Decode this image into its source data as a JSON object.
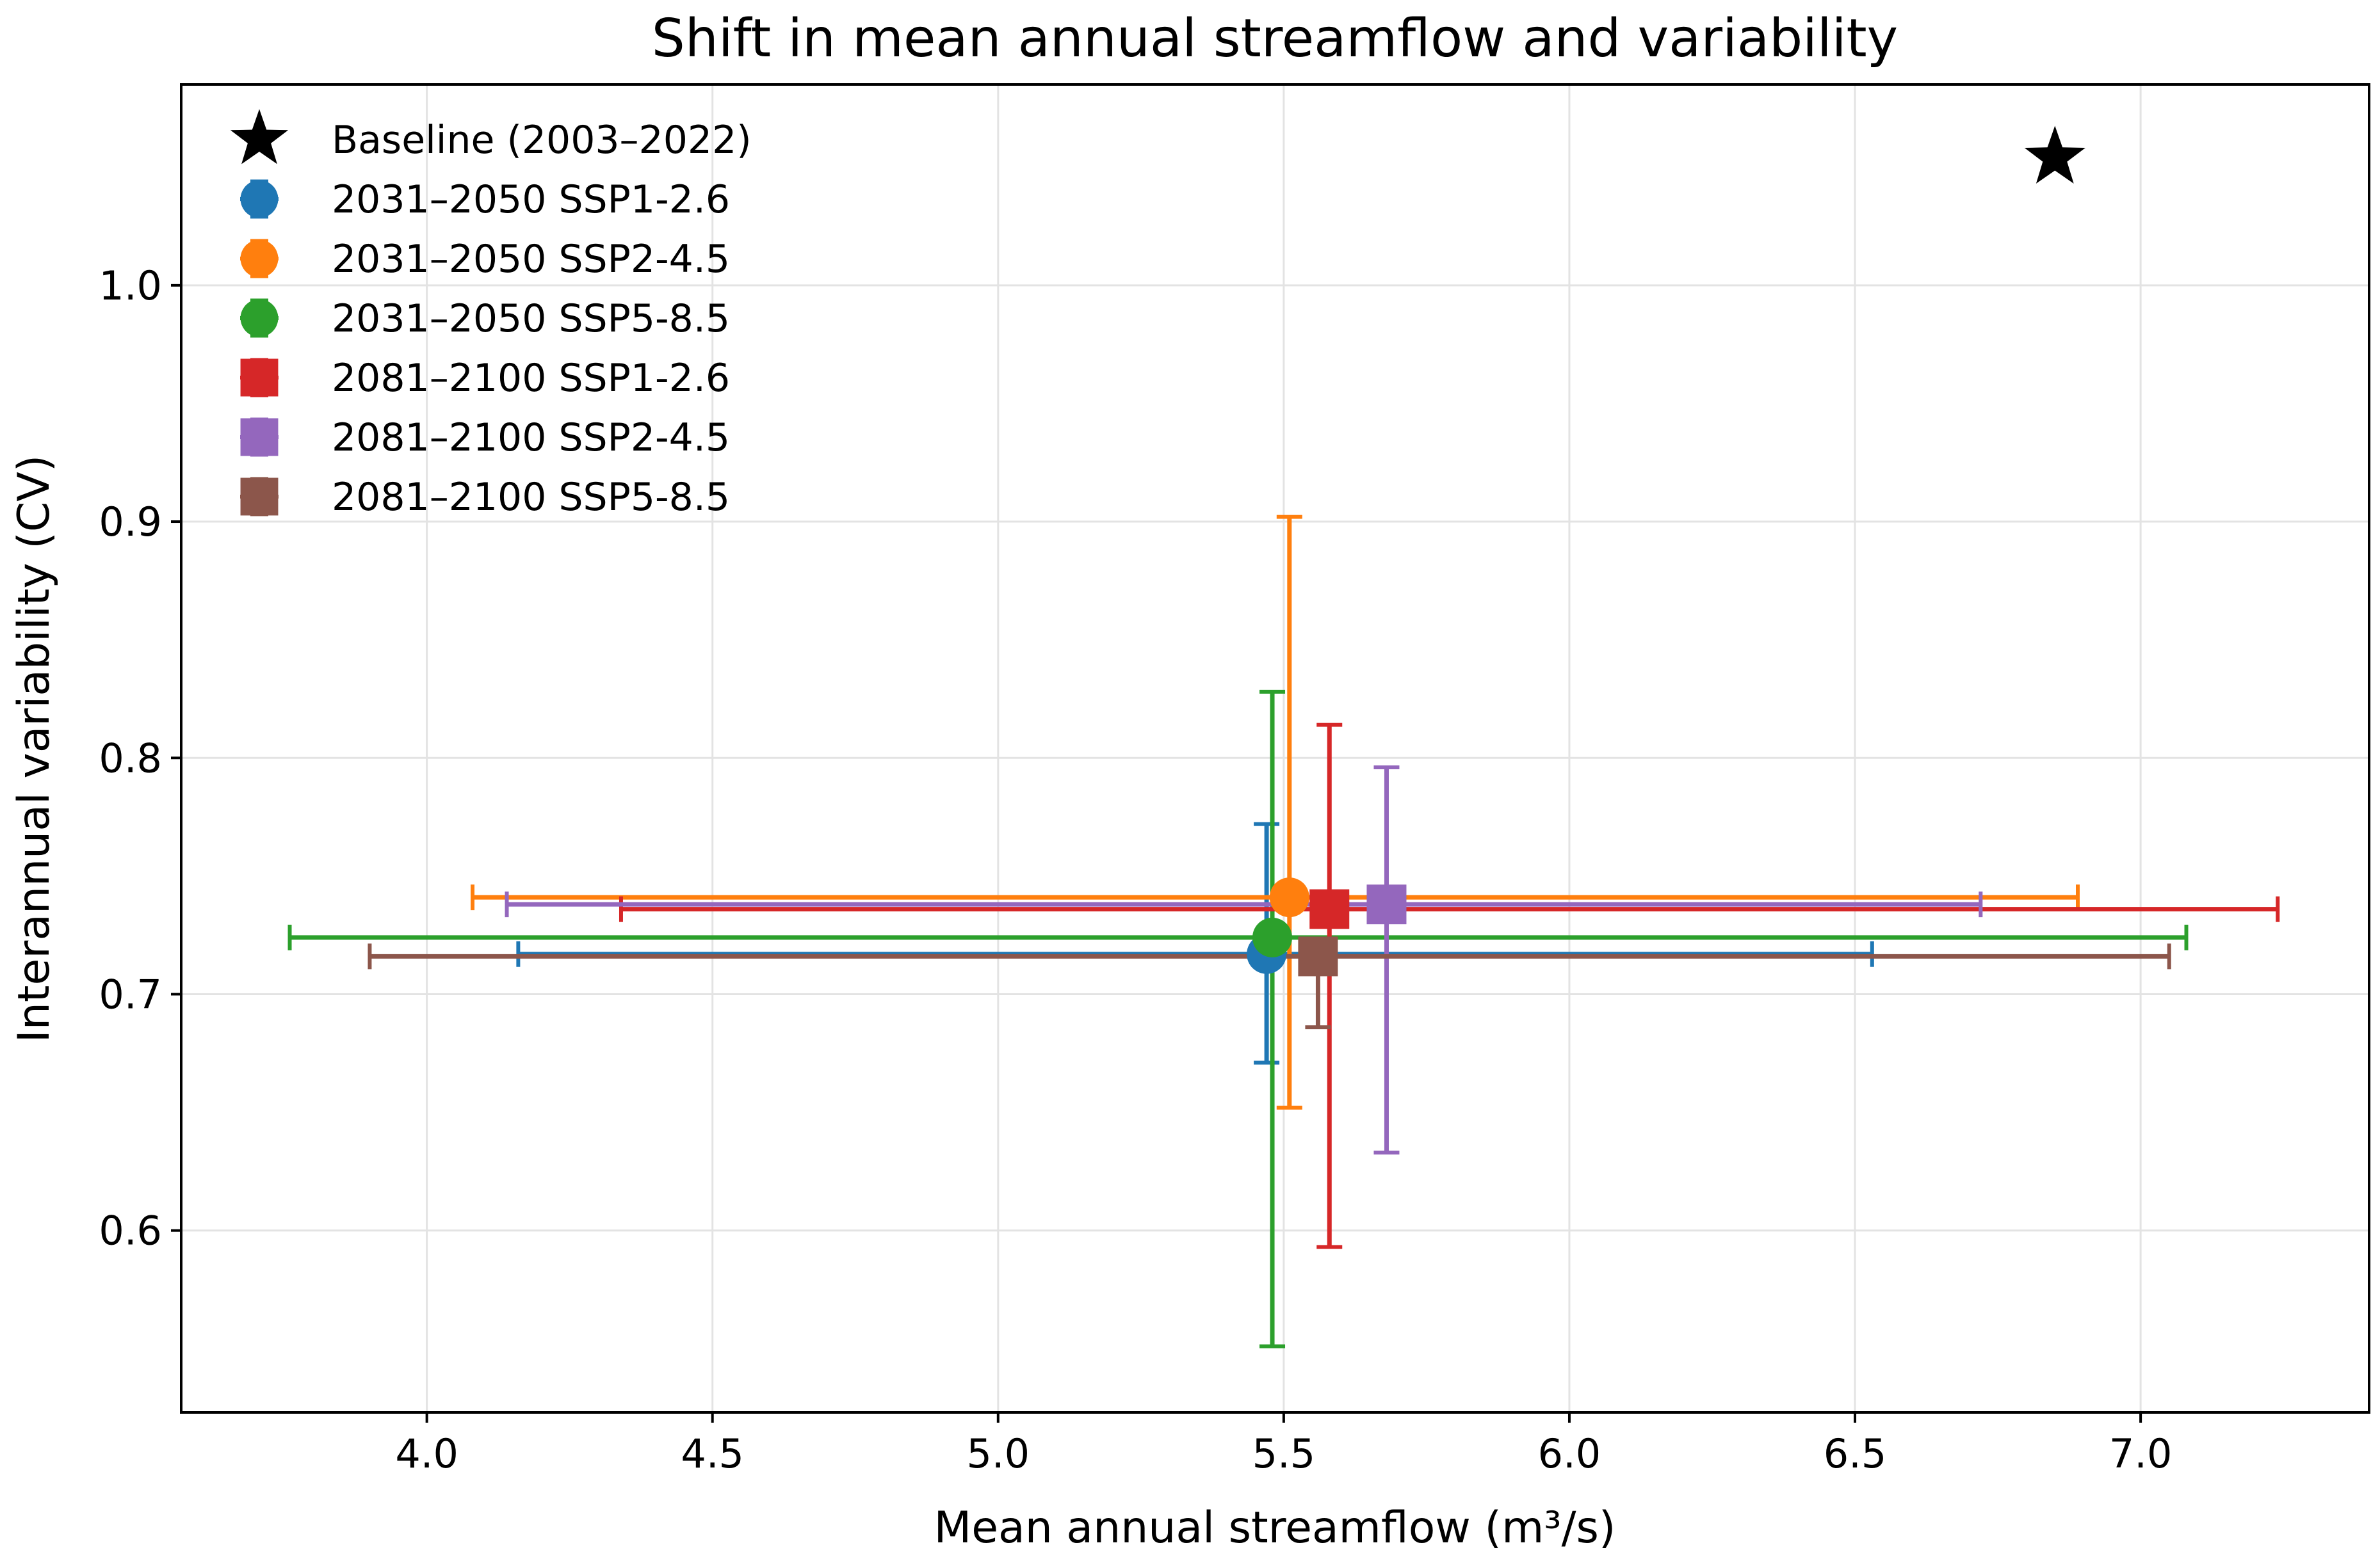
{
  "chart_data": {
    "type": "scatter",
    "title": "Shift in mean annual streamflow and variability",
    "xlabel": "Mean annual streamflow (m³/s)",
    "ylabel": "Interannual variability (CV)",
    "xlim": [
      3.57,
      7.4
    ],
    "ylim": [
      0.523,
      1.085
    ],
    "xticks": [
      4.0,
      4.5,
      5.0,
      5.5,
      6.0,
      6.5,
      7.0
    ],
    "xtick_labels": [
      "4.0",
      "4.5",
      "5.0",
      "5.5",
      "6.0",
      "6.5",
      "7.0"
    ],
    "yticks": [
      0.6,
      0.7,
      0.8,
      0.9,
      1.0
    ],
    "ytick_labels": [
      "0.6",
      "0.7",
      "0.8",
      "0.9",
      "1.0"
    ],
    "grid": true,
    "legend_position": "upper-left",
    "series": [
      {
        "name": "Baseline (2003–2022)",
        "marker": "star",
        "color": "#000000",
        "x": 6.85,
        "y": 1.054
      },
      {
        "name": "2031–2050 SSP1-2.6",
        "marker": "circle",
        "color": "#1f77b4",
        "x": 5.47,
        "y": 0.717,
        "xerr": [
          4.16,
          6.53
        ],
        "yerr": [
          0.671,
          0.772
        ]
      },
      {
        "name": "2031–2050 SSP2-4.5",
        "marker": "circle",
        "color": "#ff7f0e",
        "x": 5.51,
        "y": 0.741,
        "xerr": [
          4.08,
          6.89
        ],
        "yerr": [
          0.652,
          0.902
        ]
      },
      {
        "name": "2031–2050 SSP5-8.5",
        "marker": "circle",
        "color": "#2ca02c",
        "x": 5.48,
        "y": 0.724,
        "xerr": [
          3.76,
          7.08
        ],
        "yerr": [
          0.551,
          0.828
        ]
      },
      {
        "name": "2081–2100 SSP1-2.6",
        "marker": "square",
        "color": "#d62728",
        "x": 5.58,
        "y": 0.736,
        "xerr": [
          4.34,
          7.24
        ],
        "yerr": [
          0.593,
          0.814
        ]
      },
      {
        "name": "2081–2100 SSP2-4.5",
        "marker": "square",
        "color": "#9467bd",
        "x": 5.68,
        "y": 0.738,
        "xerr": [
          4.14,
          6.72
        ],
        "yerr": [
          0.633,
          0.796
        ]
      },
      {
        "name": "2081–2100 SSP5-8.5",
        "marker": "square",
        "color": "#8c564b",
        "x": 5.56,
        "y": 0.716,
        "xerr": [
          3.9,
          7.05
        ],
        "yerr": [
          0.686,
          0.716
        ]
      }
    ]
  }
}
